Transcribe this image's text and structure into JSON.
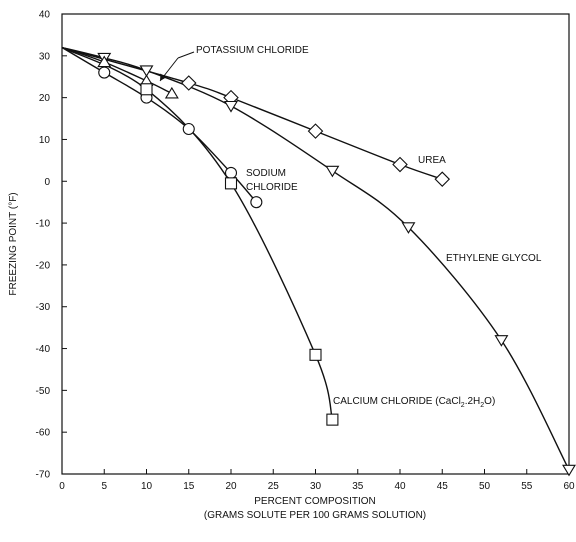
{
  "chart_data": {
    "type": "line",
    "xlabel_line1": "PERCENT COMPOSITION",
    "xlabel_line2": "(GRAMS SOLUTE PER 100 GRAMS SOLUTION)",
    "ylabel": "FREEZING POINT (°F)",
    "xlim": [
      0,
      60
    ],
    "ylim": [
      -70,
      40
    ],
    "x_ticks": [
      0,
      5,
      10,
      15,
      20,
      25,
      30,
      35,
      40,
      45,
      50,
      55,
      60
    ],
    "y_ticks": [
      40,
      30,
      20,
      10,
      0,
      -10,
      -20,
      -30,
      -40,
      -50,
      -60,
      -70
    ],
    "grid": false,
    "series": [
      {
        "name": "UREA",
        "marker": "diamond",
        "points": [
          [
            0,
            32
          ],
          [
            15,
            23.5
          ],
          [
            20,
            20
          ],
          [
            30,
            12
          ],
          [
            40,
            4
          ],
          [
            45,
            0.5
          ]
        ]
      },
      {
        "name": "ETHYLENE GLYCOL",
        "marker": "triangle-down",
        "points": [
          [
            0,
            32
          ],
          [
            5,
            29.5
          ],
          [
            10,
            26.5
          ],
          [
            20,
            18
          ],
          [
            32,
            2.5
          ],
          [
            41,
            -11
          ],
          [
            52,
            -38
          ],
          [
            60,
            -69
          ]
        ]
      },
      {
        "name": "POTASSIUM CHLORIDE",
        "marker": "triangle-up",
        "points": [
          [
            0,
            32
          ],
          [
            5,
            28.5
          ],
          [
            10,
            24
          ],
          [
            13,
            21
          ]
        ]
      },
      {
        "name": "SODIUM CHLORIDE",
        "marker": "circle",
        "points": [
          [
            0,
            32
          ],
          [
            5,
            26
          ],
          [
            10,
            20
          ],
          [
            15,
            12.5
          ],
          [
            20,
            2
          ],
          [
            23,
            -5
          ]
        ]
      },
      {
        "name": "CALCIUM CHLORIDE (CaCl2.2H2O)",
        "marker": "square",
        "points": [
          [
            0,
            32
          ],
          [
            10,
            22
          ],
          [
            20,
            -0.5
          ],
          [
            30,
            -41.5
          ],
          [
            32,
            -57
          ]
        ]
      }
    ],
    "labels": {
      "potassium": "POTASSIUM CHLORIDE",
      "urea": "UREA",
      "ethylene": "ETHYLENE GLYCOL",
      "sodium_line1": "SODIUM",
      "sodium_line2": "CHLORIDE",
      "calcium_main": "CALCIUM CHLORIDE (CaCl",
      "calcium_sub1": "2",
      "calcium_mid": ".2H",
      "calcium_sub2": "2",
      "calcium_end": "O)"
    }
  }
}
